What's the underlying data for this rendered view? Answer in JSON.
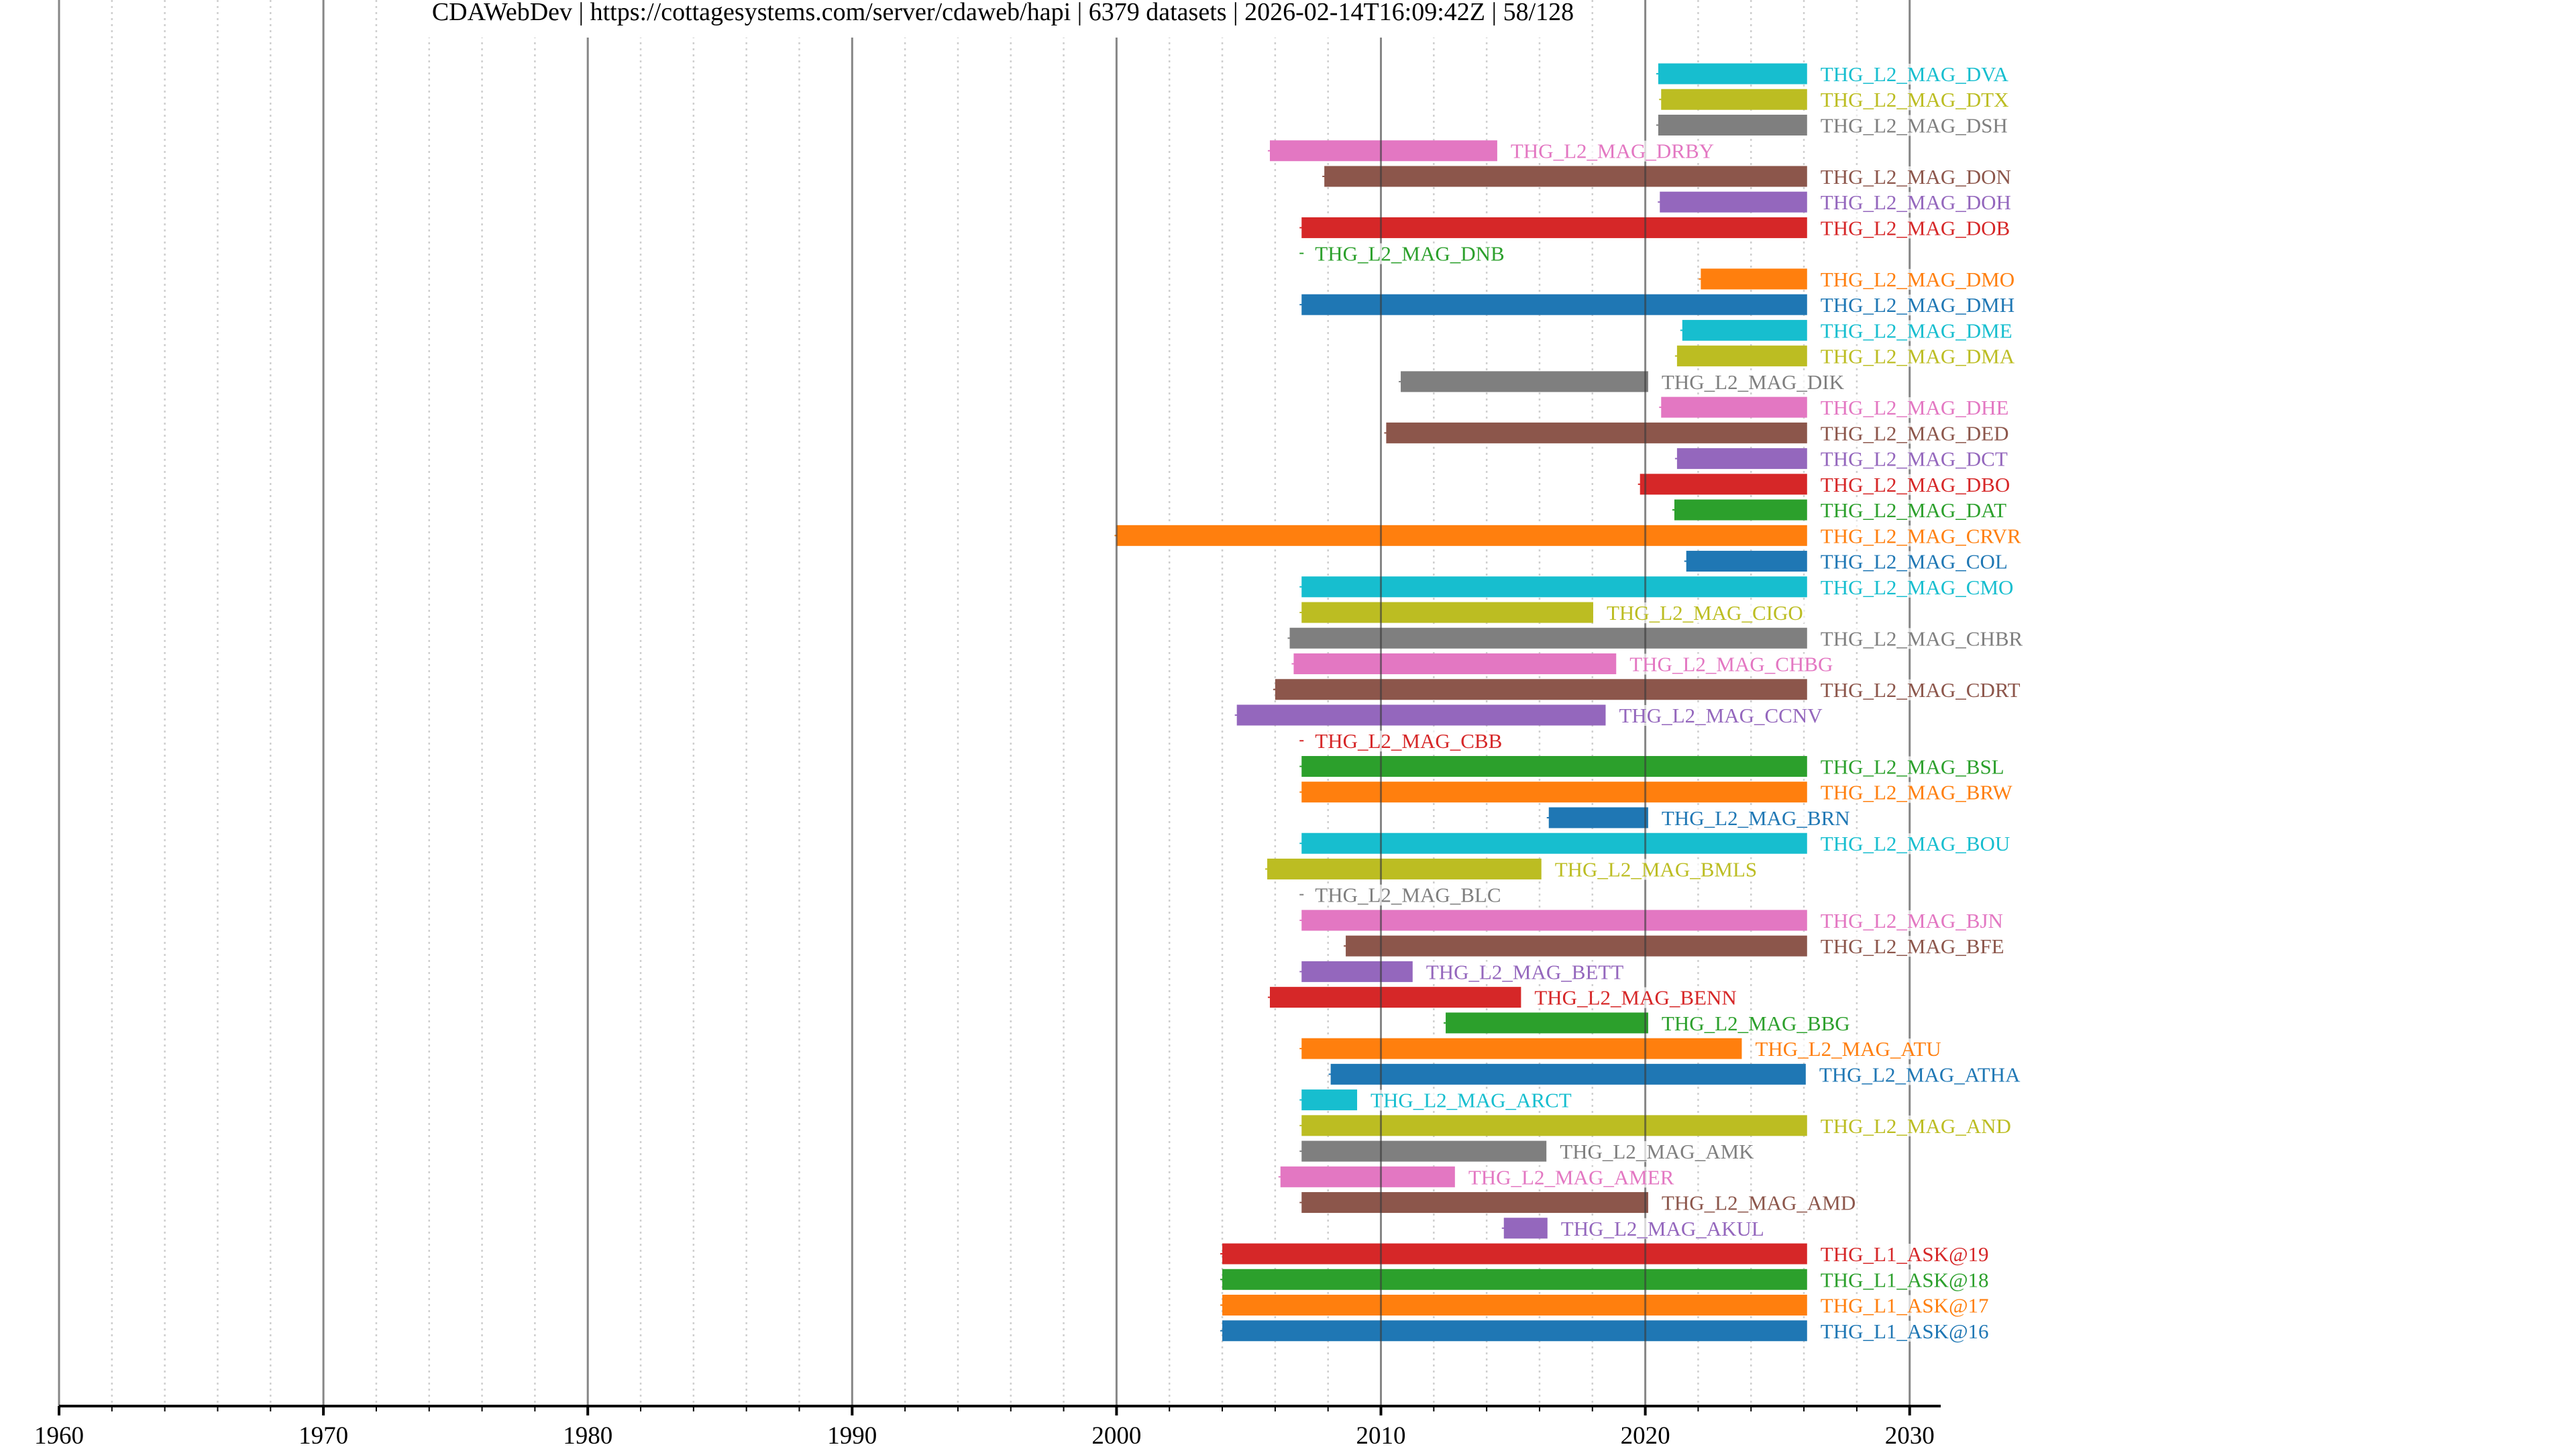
{
  "chart_data": {
    "type": "timeline",
    "title": "CDAWebDev | https://cottagesystems.com/server/cdaweb/hapi | 6379 datasets | 2026-02-14T16:09:42Z | 58/128",
    "title_parts": {
      "server": "CDAWebDev",
      "url": "https://cottagesystems.com/server/cdaweb/hapi",
      "dataset_count": "6379 datasets",
      "timestamp": "2026-02-14T16:09:42Z",
      "page": "58/128"
    },
    "xlabel": "",
    "ylabel": "",
    "xlim": [
      1960,
      2031.2
    ],
    "x_major_ticks": [
      1960,
      1970,
      1980,
      1990,
      2000,
      2010,
      2020,
      2030
    ],
    "x_tick_labels": [
      "1960",
      "1970",
      "1980",
      "1990",
      "2000",
      "2010",
      "2020",
      "2030"
    ],
    "x_minor_tick_step": 2,
    "grid": true,
    "palette": [
      "#1f77b4",
      "#ff7f0e",
      "#2ca02c",
      "#d62728",
      "#9467bd",
      "#8c564b",
      "#e377c2",
      "#7f7f7f",
      "#bcbd22",
      "#17becf"
    ],
    "series": [
      {
        "name": "THG_L2_MAG_DVA",
        "start": 2020.49,
        "end": 2026.12,
        "color": "#17becf"
      },
      {
        "name": "THG_L2_MAG_DTX",
        "start": 2020.6,
        "end": 2026.12,
        "color": "#bcbd22"
      },
      {
        "name": "THG_L2_MAG_DSH",
        "start": 2020.49,
        "end": 2026.12,
        "color": "#7f7f7f"
      },
      {
        "name": "THG_L2_MAG_DRBY",
        "start": 2005.8,
        "end": 2014.4,
        "color": "#e377c2"
      },
      {
        "name": "THG_L2_MAG_DON",
        "start": 2007.86,
        "end": 2026.12,
        "color": "#8c564b"
      },
      {
        "name": "THG_L2_MAG_DOH",
        "start": 2020.55,
        "end": 2026.12,
        "color": "#9467bd"
      },
      {
        "name": "THG_L2_MAG_DOB",
        "start": 2007.0,
        "end": 2026.12,
        "color": "#d62728"
      },
      {
        "name": "THG_L2_MAG_DNB",
        "start": 2007.0,
        "end": 2007.0,
        "color": "#2ca02c"
      },
      {
        "name": "THG_L2_MAG_DMO",
        "start": 2022.1,
        "end": 2026.12,
        "color": "#ff7f0e"
      },
      {
        "name": "THG_L2_MAG_DMH",
        "start": 2007.0,
        "end": 2026.12,
        "color": "#1f77b4"
      },
      {
        "name": "THG_L2_MAG_DME",
        "start": 2021.4,
        "end": 2026.12,
        "color": "#17becf"
      },
      {
        "name": "THG_L2_MAG_DMA",
        "start": 2021.2,
        "end": 2026.12,
        "color": "#bcbd22"
      },
      {
        "name": "THG_L2_MAG_DIK",
        "start": 2010.75,
        "end": 2020.11,
        "color": "#7f7f7f"
      },
      {
        "name": "THG_L2_MAG_DHE",
        "start": 2020.6,
        "end": 2026.12,
        "color": "#e377c2"
      },
      {
        "name": "THG_L2_MAG_DED",
        "start": 2010.2,
        "end": 2026.12,
        "color": "#8c564b"
      },
      {
        "name": "THG_L2_MAG_DCT",
        "start": 2021.2,
        "end": 2026.12,
        "color": "#9467bd"
      },
      {
        "name": "THG_L2_MAG_DBO",
        "start": 2019.8,
        "end": 2026.12,
        "color": "#d62728"
      },
      {
        "name": "THG_L2_MAG_DAT",
        "start": 2021.1,
        "end": 2026.12,
        "color": "#2ca02c"
      },
      {
        "name": "THG_L2_MAG_CRVR",
        "start": 2000.0,
        "end": 2026.12,
        "color": "#ff7f0e"
      },
      {
        "name": "THG_L2_MAG_COL",
        "start": 2021.55,
        "end": 2026.12,
        "color": "#1f77b4"
      },
      {
        "name": "THG_L2_MAG_CMO",
        "start": 2007.0,
        "end": 2026.12,
        "color": "#17becf"
      },
      {
        "name": "THG_L2_MAG_CIGO",
        "start": 2007.0,
        "end": 2018.03,
        "color": "#bcbd22"
      },
      {
        "name": "THG_L2_MAG_CHBR",
        "start": 2006.55,
        "end": 2026.12,
        "color": "#7f7f7f"
      },
      {
        "name": "THG_L2_MAG_CHBG",
        "start": 2006.7,
        "end": 2018.9,
        "color": "#e377c2"
      },
      {
        "name": "THG_L2_MAG_CDRT",
        "start": 2006.0,
        "end": 2026.12,
        "color": "#8c564b"
      },
      {
        "name": "THG_L2_MAG_CCNV",
        "start": 2004.55,
        "end": 2018.5,
        "color": "#9467bd"
      },
      {
        "name": "THG_L2_MAG_CBB",
        "start": 2007.0,
        "end": 2007.0,
        "color": "#d62728"
      },
      {
        "name": "THG_L2_MAG_BSL",
        "start": 2007.0,
        "end": 2026.12,
        "color": "#2ca02c"
      },
      {
        "name": "THG_L2_MAG_BRW",
        "start": 2007.0,
        "end": 2026.12,
        "color": "#ff7f0e"
      },
      {
        "name": "THG_L2_MAG_BRN",
        "start": 2016.35,
        "end": 2020.11,
        "color": "#1f77b4"
      },
      {
        "name": "THG_L2_MAG_BOU",
        "start": 2007.0,
        "end": 2026.12,
        "color": "#17becf"
      },
      {
        "name": "THG_L2_MAG_BMLS",
        "start": 2005.7,
        "end": 2016.07,
        "color": "#bcbd22"
      },
      {
        "name": "THG_L2_MAG_BLC",
        "start": 2007.0,
        "end": 2007.0,
        "color": "#7f7f7f"
      },
      {
        "name": "THG_L2_MAG_BJN",
        "start": 2007.0,
        "end": 2026.12,
        "color": "#e377c2"
      },
      {
        "name": "THG_L2_MAG_BFE",
        "start": 2008.67,
        "end": 2026.12,
        "color": "#8c564b"
      },
      {
        "name": "THG_L2_MAG_BETT",
        "start": 2007.0,
        "end": 2011.2,
        "color": "#9467bd"
      },
      {
        "name": "THG_L2_MAG_BENN",
        "start": 2005.8,
        "end": 2015.3,
        "color": "#d62728"
      },
      {
        "name": "THG_L2_MAG_BBG",
        "start": 2012.45,
        "end": 2020.11,
        "color": "#2ca02c"
      },
      {
        "name": "THG_L2_MAG_ATU",
        "start": 2007.0,
        "end": 2023.65,
        "color": "#ff7f0e"
      },
      {
        "name": "THG_L2_MAG_ATHA",
        "start": 2008.1,
        "end": 2026.07,
        "color": "#1f77b4"
      },
      {
        "name": "THG_L2_MAG_ARCT",
        "start": 2007.0,
        "end": 2009.1,
        "color": "#17becf"
      },
      {
        "name": "THG_L2_MAG_AND",
        "start": 2007.0,
        "end": 2026.12,
        "color": "#bcbd22"
      },
      {
        "name": "THG_L2_MAG_AMK",
        "start": 2007.0,
        "end": 2016.26,
        "color": "#7f7f7f"
      },
      {
        "name": "THG_L2_MAG_AMER",
        "start": 2006.2,
        "end": 2012.8,
        "color": "#e377c2"
      },
      {
        "name": "THG_L2_MAG_AMD",
        "start": 2007.0,
        "end": 2020.11,
        "color": "#8c564b"
      },
      {
        "name": "THG_L2_MAG_AKUL",
        "start": 2014.65,
        "end": 2016.3,
        "color": "#9467bd"
      },
      {
        "name": "THG_L1_ASK@19",
        "start": 2004.0,
        "end": 2026.12,
        "color": "#d62728"
      },
      {
        "name": "THG_L1_ASK@18",
        "start": 2004.0,
        "end": 2026.12,
        "color": "#2ca02c"
      },
      {
        "name": "THG_L1_ASK@17",
        "start": 2004.0,
        "end": 2026.12,
        "color": "#ff7f0e"
      },
      {
        "name": "THG_L1_ASK@16",
        "start": 2004.0,
        "end": 2026.12,
        "color": "#1f77b4"
      }
    ]
  }
}
